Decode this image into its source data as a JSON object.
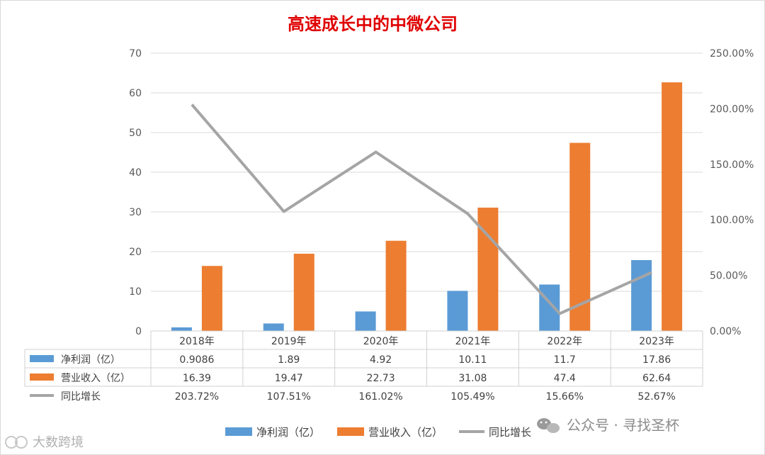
{
  "chart_data": {
    "type": "bar",
    "title": "高速成长中的中微公司",
    "categories": [
      "2018年",
      "2019年",
      "2020年",
      "2021年",
      "2022年",
      "2023年"
    ],
    "series": [
      {
        "name": "净利润（亿）",
        "type": "bar",
        "axis": "left",
        "color": "#5b9bd5",
        "values": [
          0.9086,
          1.89,
          4.92,
          10.11,
          11.7,
          17.86
        ],
        "labels": [
          "0.9086",
          "1.89",
          "4.92",
          "10.11",
          "11.7",
          "17.86"
        ]
      },
      {
        "name": "营业收入（亿）",
        "type": "bar",
        "axis": "left",
        "color": "#ed7d31",
        "values": [
          16.39,
          19.47,
          22.73,
          31.08,
          47.4,
          62.64
        ],
        "labels": [
          "16.39",
          "19.47",
          "22.73",
          "31.08",
          "47.4",
          "62.64"
        ]
      },
      {
        "name": "同比增长",
        "type": "line",
        "axis": "right",
        "color": "#a5a5a5",
        "values": [
          203.72,
          107.51,
          161.02,
          105.49,
          15.66,
          52.67
        ],
        "labels": [
          "203.72%",
          "107.51%",
          "161.02%",
          "105.49%",
          "15.66%",
          "52.67%"
        ]
      }
    ],
    "y_left": {
      "range": [
        0,
        70
      ],
      "ticks": [
        "0",
        "10",
        "20",
        "30",
        "40",
        "50",
        "60",
        "70"
      ]
    },
    "y_right": {
      "range": [
        0,
        250
      ],
      "ticks": [
        "0.00%",
        "50.00%",
        "100.00%",
        "150.00%",
        "200.00%",
        "250.00%"
      ]
    },
    "grid": true,
    "legend_position": "bottom",
    "data_table": true
  },
  "watermarks": {
    "wechat": "公众号 · 寻找圣杯",
    "corner": "大数跨境"
  }
}
